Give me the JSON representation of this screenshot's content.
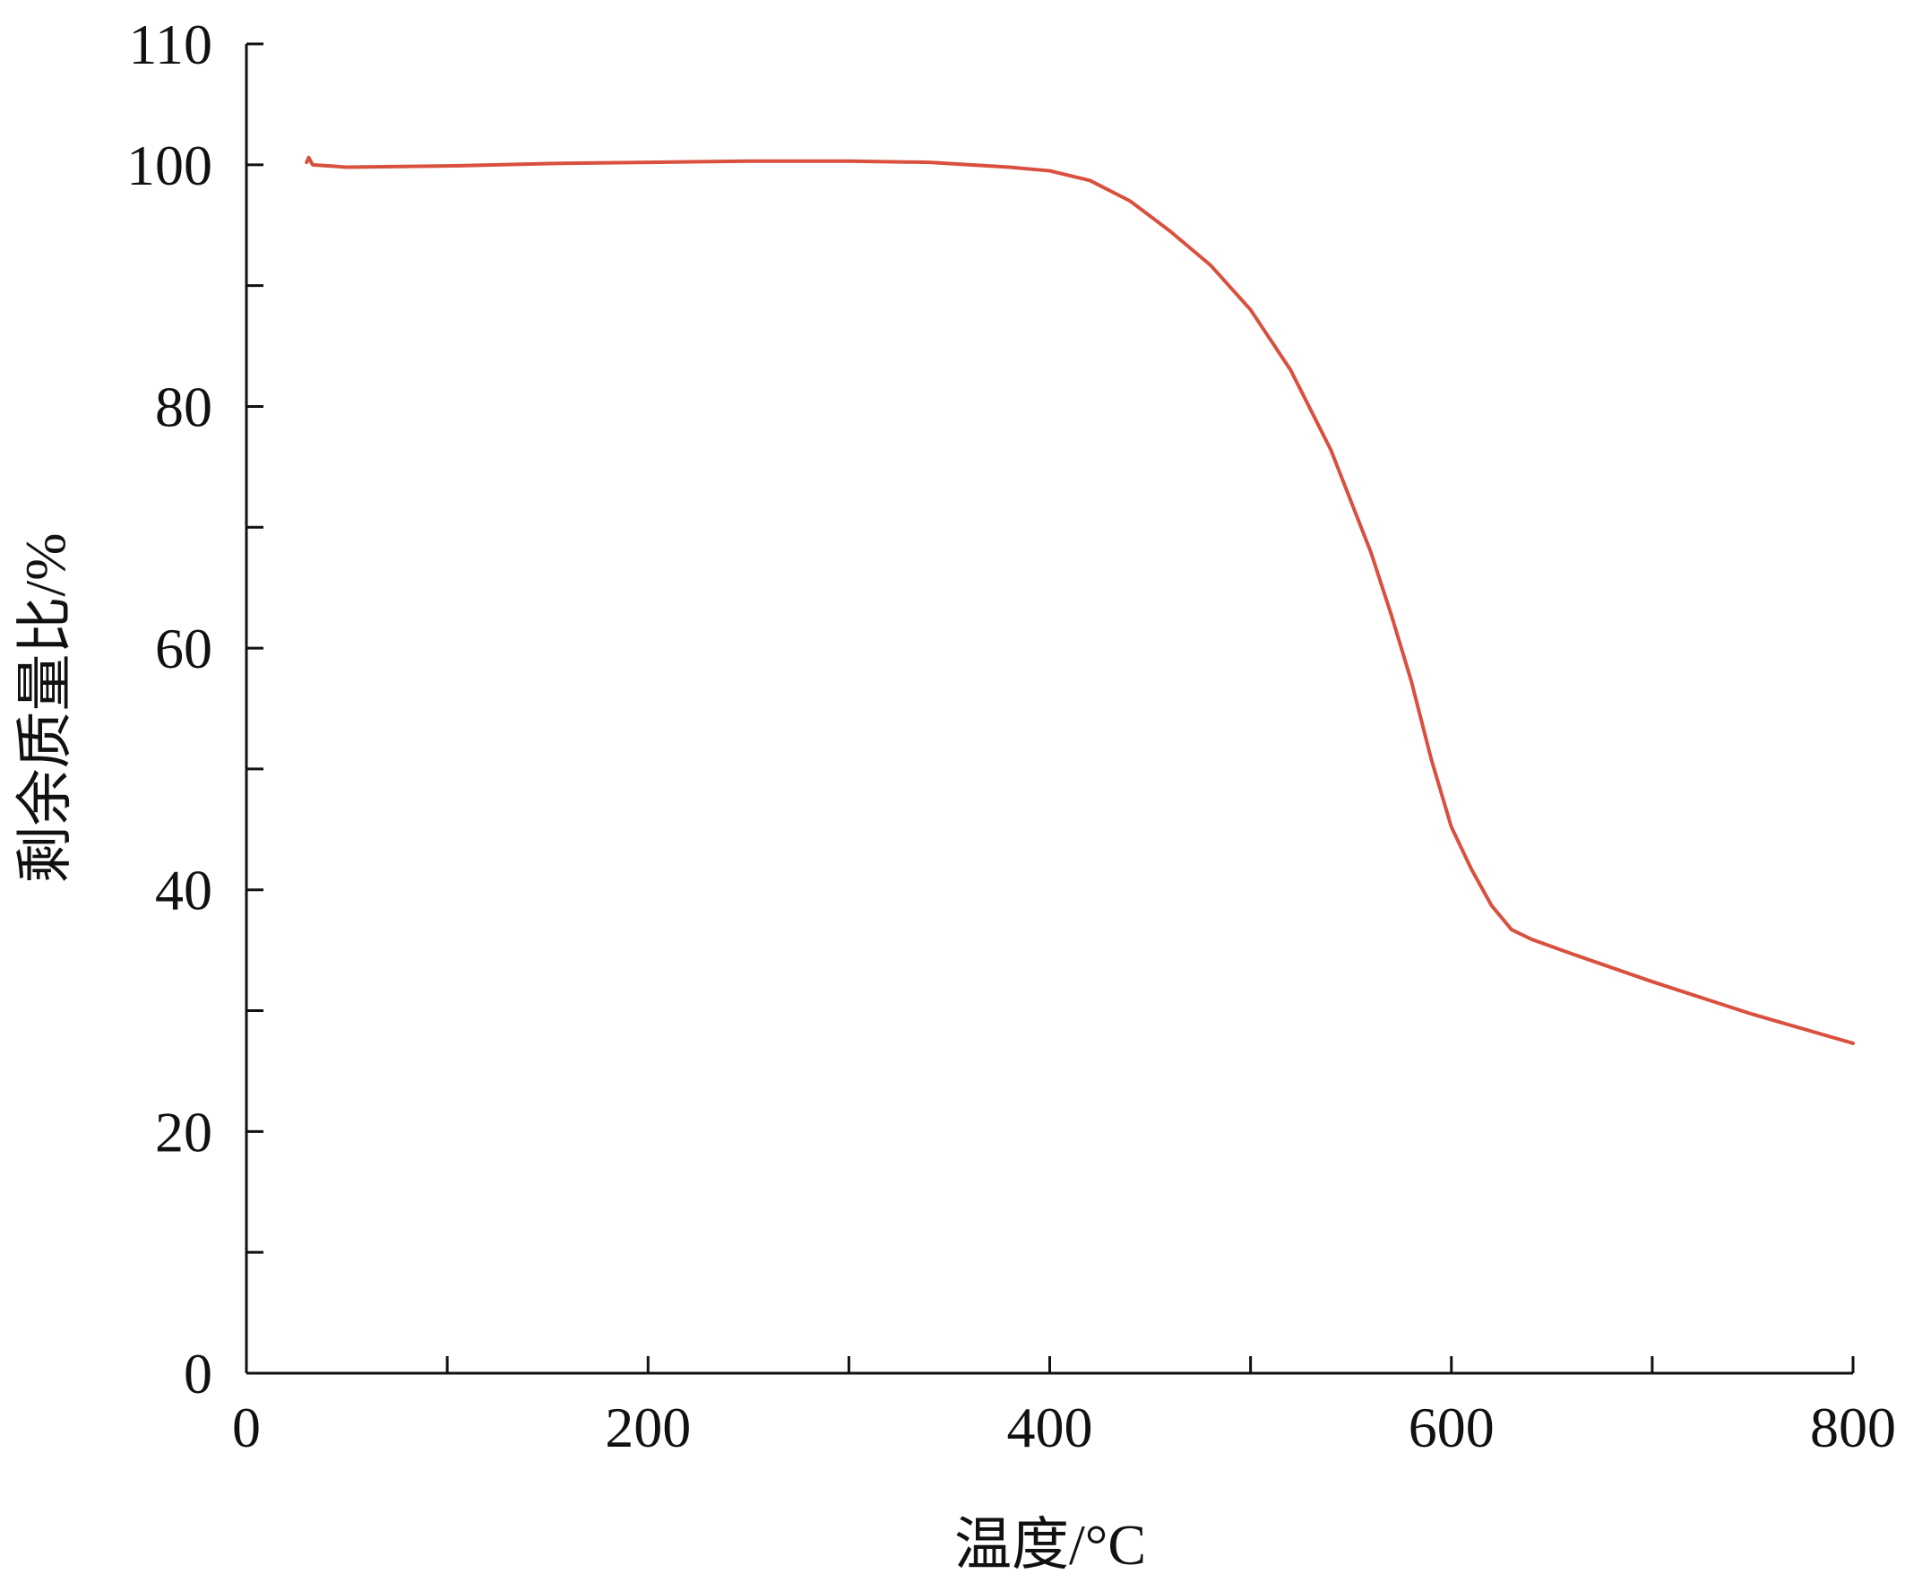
{
  "chart_data": {
    "type": "line",
    "x_label": "温度/°C",
    "y_label": "剩余质量比/%",
    "xlim": [
      0,
      800
    ],
    "ylim": [
      0,
      110
    ],
    "xticks": [
      0,
      200,
      400,
      600,
      800
    ],
    "xminor_ticks": [
      100,
      300,
      500,
      700
    ],
    "yticks": [
      0,
      20,
      40,
      60,
      80,
      100,
      110
    ],
    "yminor_ticks": [
      10,
      30,
      50,
      70,
      90
    ],
    "grid": false,
    "x": [
      30,
      31,
      33,
      50,
      100,
      150,
      200,
      250,
      300,
      340,
      380,
      400,
      420,
      440,
      460,
      480,
      500,
      520,
      540,
      560,
      570,
      580,
      590,
      600,
      610,
      620,
      630,
      640,
      660,
      700,
      750,
      800
    ],
    "series": [
      {
        "color": "#d9503f",
        "values": [
          100.2,
          100.6,
          100.0,
          99.8,
          99.9,
          100.1,
          100.2,
          100.3,
          100.3,
          100.2,
          99.8,
          99.5,
          98.7,
          97.0,
          94.5,
          91.7,
          88.0,
          83.0,
          76.4,
          67.9,
          62.8,
          57.3,
          50.8,
          45.2,
          41.7,
          38.7,
          36.7,
          35.9,
          34.7,
          32.4,
          29.7,
          27.3
        ]
      }
    ]
  }
}
